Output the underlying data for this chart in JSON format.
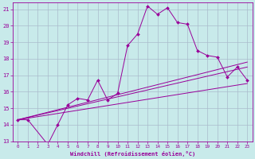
{
  "xlabel": "Windchill (Refroidissement éolien,°C)",
  "bg_color": "#c8eaea",
  "grid_color": "#aabbcc",
  "line_color": "#990099",
  "xlim": [
    -0.5,
    23.5
  ],
  "ylim": [
    13,
    21.4
  ],
  "yticks": [
    13,
    14,
    15,
    16,
    17,
    18,
    19,
    20,
    21
  ],
  "xticks": [
    0,
    1,
    2,
    3,
    4,
    5,
    6,
    7,
    8,
    9,
    10,
    11,
    12,
    13,
    14,
    15,
    16,
    17,
    18,
    19,
    20,
    21,
    22,
    23
  ],
  "main_x": [
    0,
    1,
    3,
    4,
    5,
    6,
    7,
    8,
    9,
    10,
    11,
    12,
    13,
    14,
    15,
    16,
    17,
    18,
    19,
    20,
    21,
    22,
    23
  ],
  "main_y": [
    14.3,
    14.3,
    12.8,
    14.0,
    15.2,
    15.6,
    15.5,
    16.7,
    15.5,
    15.9,
    18.8,
    19.5,
    21.2,
    20.7,
    21.1,
    20.2,
    20.1,
    18.5,
    18.2,
    18.1,
    16.9,
    17.5,
    16.7
  ],
  "line1_x": [
    0,
    23
  ],
  "line1_y": [
    14.3,
    16.5
  ],
  "line2_x": [
    0,
    23
  ],
  "line2_y": [
    14.3,
    17.5
  ],
  "line3_x": [
    0,
    23
  ],
  "line3_y": [
    14.3,
    17.8
  ]
}
